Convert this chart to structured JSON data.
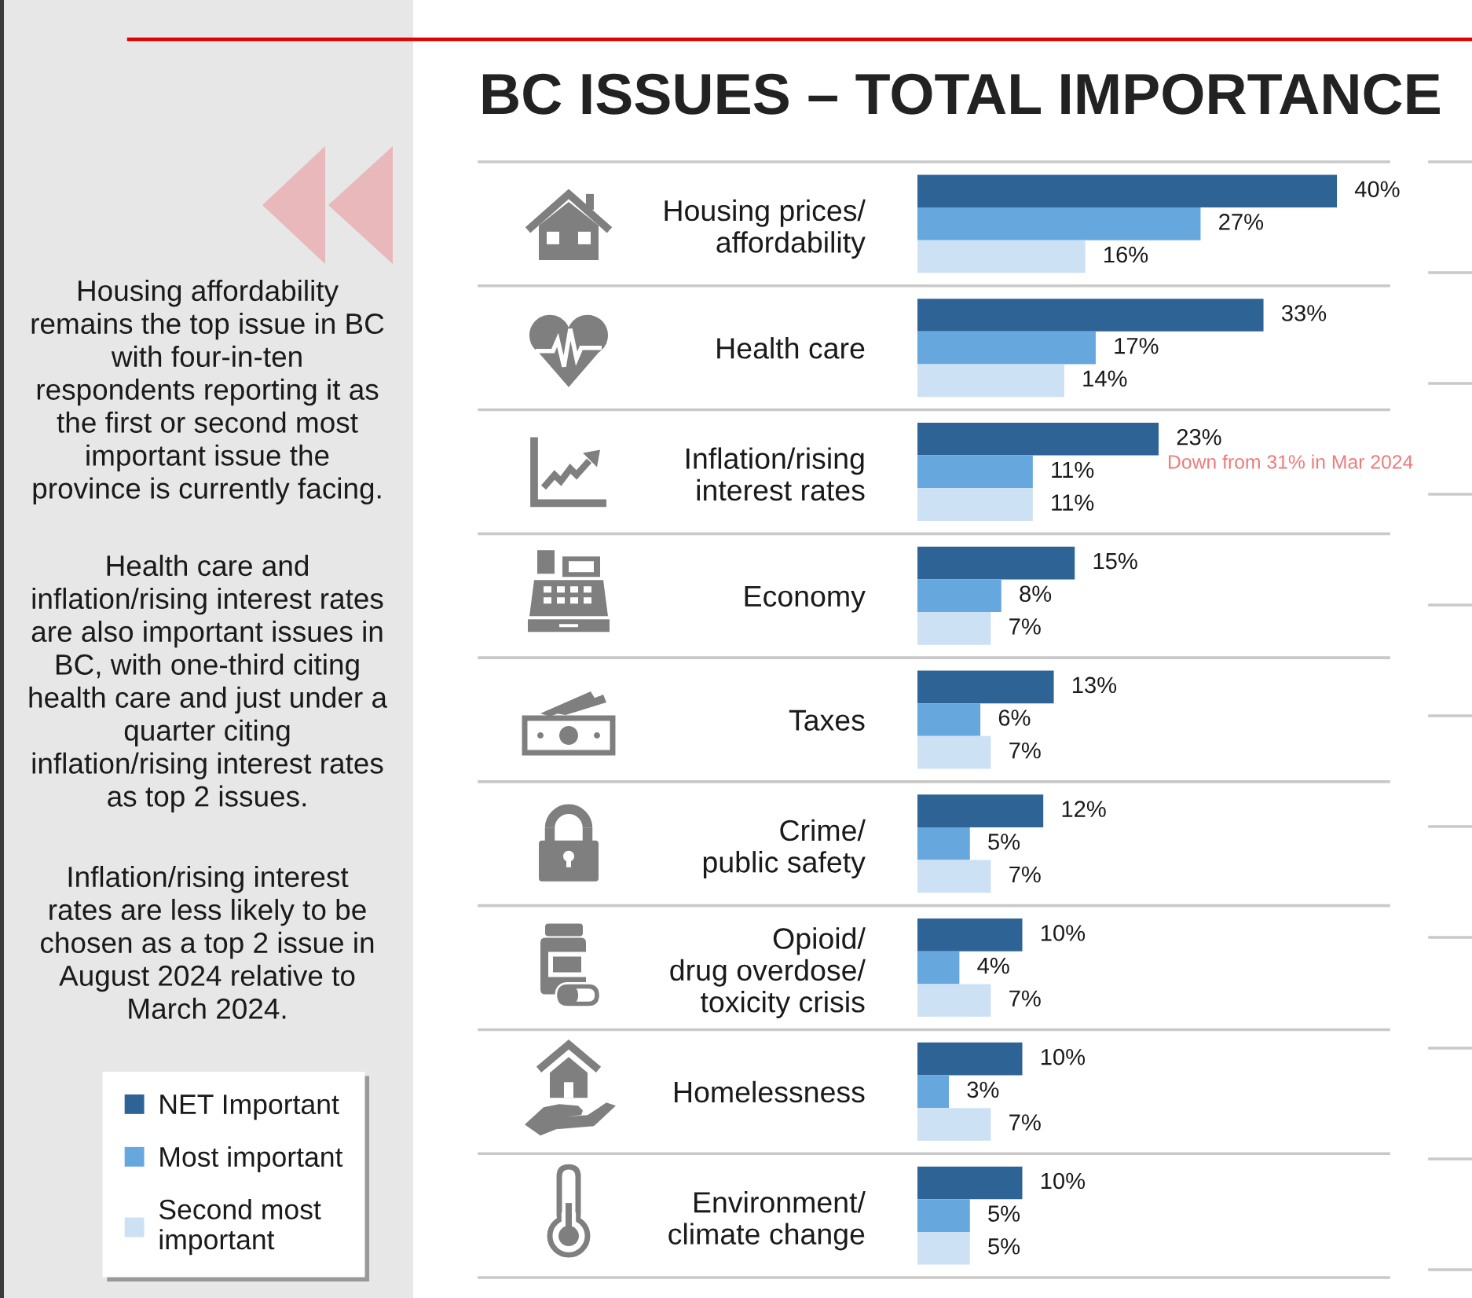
{
  "chart_data": {
    "type": "bar",
    "orientation": "horizontal",
    "title": "BC ISSUES – TOTAL IMPORTANCE",
    "categories": [
      "Housing prices/\naffordability",
      "Health care",
      "Inflation/rising\ninterest rates",
      "Economy",
      "Taxes",
      "Crime/\npublic safety",
      "Opioid/\ndrug overdose/\ntoxicity crisis",
      "Homelessness",
      "Environment/\nclimate change"
    ],
    "series": [
      {
        "name": "NET Important",
        "color": "#2e6396",
        "values": [
          40,
          33,
          23,
          15,
          13,
          12,
          10,
          10,
          10
        ],
        "value_labels": [
          "40%",
          "33%",
          "23%",
          "15%",
          "13%",
          "12%",
          "10%",
          "10%",
          "10%"
        ]
      },
      {
        "name": "Most important",
        "color": "#66a7dd",
        "values": [
          27,
          17,
          11,
          8,
          6,
          5,
          4,
          3,
          5
        ],
        "value_labels": [
          "27%",
          "17%",
          "11%",
          "8%",
          "6%",
          "5%",
          "4%",
          "3%",
          "5%"
        ]
      },
      {
        "name": "Second most\nimportant",
        "color": "#cde1f5",
        "values": [
          16,
          14,
          11,
          7,
          7,
          7,
          7,
          7,
          5
        ],
        "value_labels": [
          "16%",
          "14%",
          "11%",
          "7%",
          "7%",
          "7%",
          "7%",
          "7%",
          "5%"
        ]
      }
    ],
    "tick_labels": "y",
    "legend": "bottom left",
    "annotations": [
      "Housing affordability\nremains the top issue in BC\nwith four-in-ten\nrespondents reporting it as\nthe first or second most\nimportant issue the\nprovince is currently facing.",
      "Health care and\ninflation/rising interest rates\nare also important issues in\nBC, with one-third citing\nhealth care and just under a\nquarter citing\ninflation/rising interest rates\nas top 2 issues.",
      "Inflation/rising interest\nrates are less likely to be\nchosen as a top 2 issue in\nAugust 2024 relative to\nMarch 2024.",
      "Down from 31% in Mar 2024"
    ]
  }
}
